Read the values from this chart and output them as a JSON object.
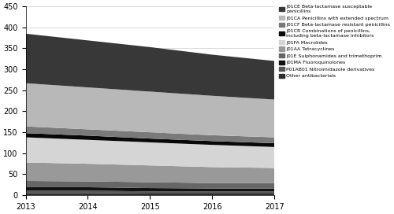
{
  "years": [
    2013,
    2014,
    2015,
    2016,
    2017
  ],
  "series_bottom_to_top": [
    {
      "label": "Other antibacterials",
      "color": "#2d2d2d",
      "values": [
        5,
        5,
        4,
        4,
        4
      ]
    },
    {
      "label": "P01AB01 Nitroimidazole derivatives",
      "color": "#555555",
      "values": [
        6,
        6,
        5,
        5,
        5
      ]
    },
    {
      "label": "J01MA Fluoroquinolones",
      "color": "#111111",
      "values": [
        8,
        8,
        8,
        7,
        7
      ]
    },
    {
      "label": "J01E Sulphonamides and trimethoprim",
      "color": "#666666",
      "values": [
        15,
        14,
        14,
        13,
        13
      ]
    },
    {
      "label": "J01AA Tetracyclines",
      "color": "#999999",
      "values": [
        44,
        42,
        40,
        38,
        36
      ]
    },
    {
      "label": "J01FA Macrolides",
      "color": "#d5d5d5",
      "values": [
        60,
        57,
        55,
        53,
        50
      ]
    },
    {
      "label": "J01CR Combinations of penicillins,\nincluding beta-lactamase inhibitors",
      "color": "#080808",
      "values": [
        10,
        10,
        9,
        9,
        9
      ]
    },
    {
      "label": "J01CF Beta-lactamase resistant penicillins",
      "color": "#7a7a7a",
      "values": [
        16,
        15,
        15,
        14,
        14
      ]
    },
    {
      "label": "J01CA Penicillins with extended spectrum",
      "color": "#b8b8b8",
      "values": [
        103,
        100,
        97,
        94,
        90
      ]
    },
    {
      "label": "J01CE Beta-lactamase susceptable\npenicillins",
      "color": "#383838",
      "values": [
        118,
        112,
        106,
        98,
        92
      ]
    }
  ],
  "legend_order": [
    9,
    8,
    7,
    6,
    5,
    4,
    3,
    2,
    1,
    0
  ],
  "ylim": [
    0,
    450
  ],
  "yticks": [
    0,
    50,
    100,
    150,
    200,
    250,
    300,
    350,
    400,
    450
  ],
  "background_color": "#ffffff",
  "grid_color": "#cccccc"
}
